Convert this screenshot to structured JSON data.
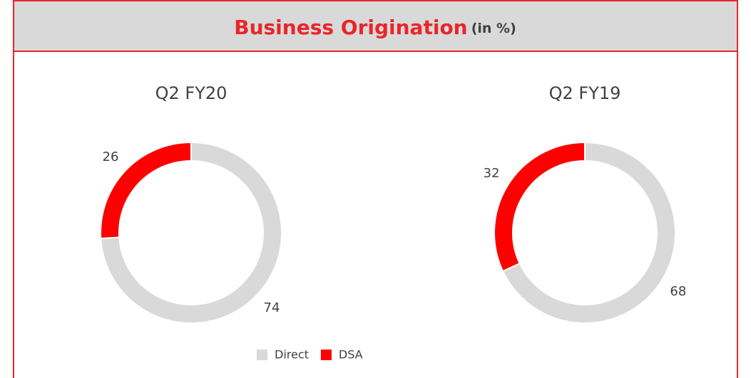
{
  "header": {
    "title": "Business Origination",
    "subtitle": "(in %)"
  },
  "chart_data": [
    {
      "type": "donut",
      "title": "Q2 FY20",
      "categories": [
        "Direct",
        "DSA"
      ],
      "values": [
        74,
        26
      ],
      "colors": [
        "#d9d9d9",
        "#ff0000"
      ]
    },
    {
      "type": "donut",
      "title": "Q2 FY19",
      "categories": [
        "Direct",
        "DSA"
      ],
      "values": [
        68,
        32
      ],
      "colors": [
        "#d9d9d9",
        "#ff0000"
      ]
    }
  ]
}
